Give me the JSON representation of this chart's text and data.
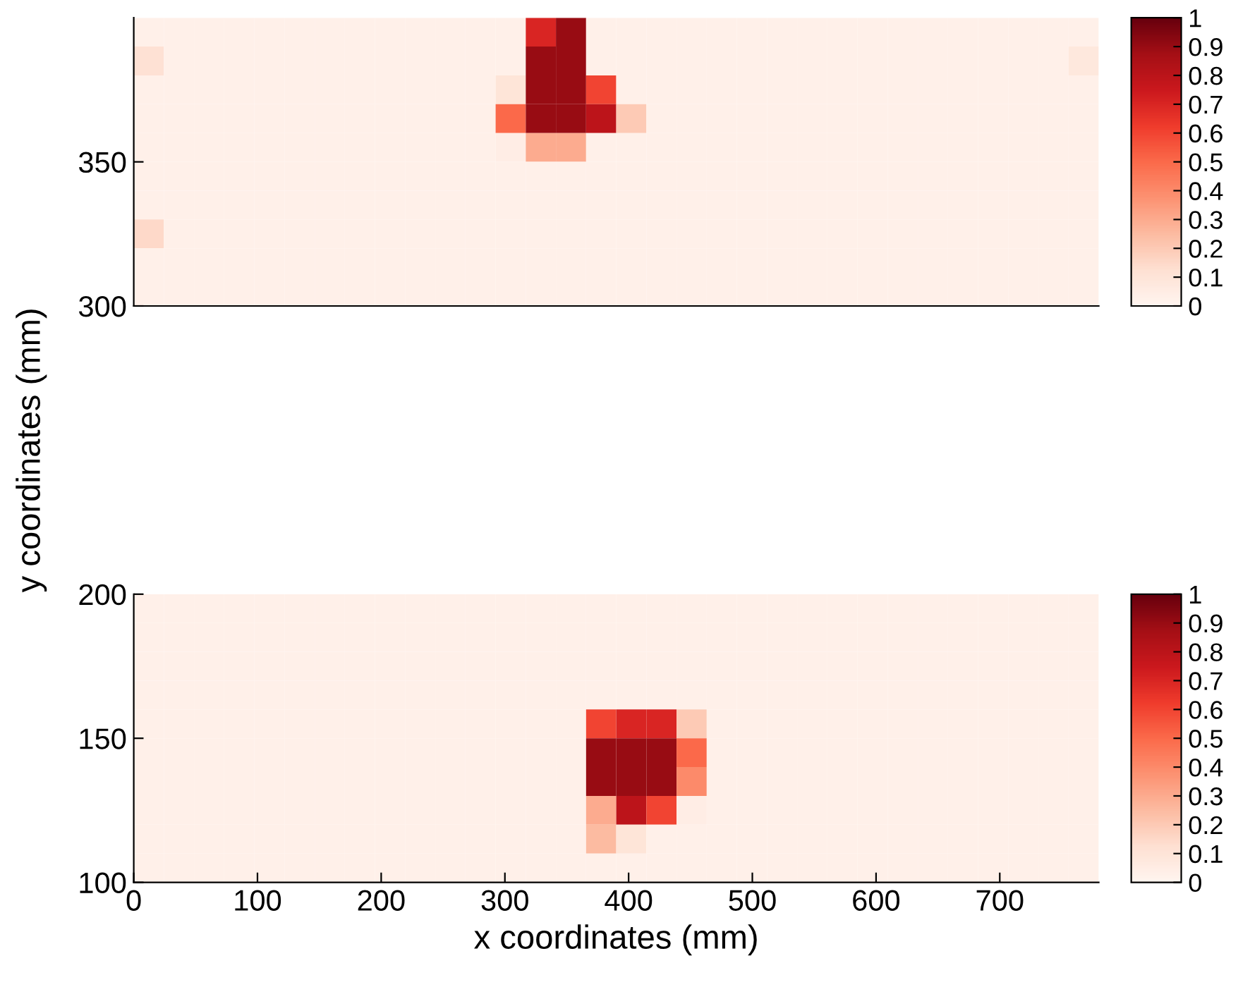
{
  "chart_data": [
    {
      "type": "heatmap",
      "ylabel": "y coordinates (mm)",
      "xlim": [
        0,
        780
      ],
      "ylim": [
        300,
        400
      ],
      "tick_labels": "y",
      "yticks": [
        300,
        350
      ],
      "clim": [
        0,
        1
      ],
      "cticks": [
        0,
        0.1,
        0.2,
        0.3,
        0.4,
        0.5,
        0.6,
        0.7,
        0.8,
        0.9,
        1
      ],
      "cells": [
        [
          0.03,
          0.03,
          0.03,
          0.03,
          0.03,
          0.03,
          0.03,
          0.03,
          0.03,
          0.03,
          0.03,
          0.03,
          0.03,
          0.7,
          0.9,
          0.03,
          0.03,
          0.03,
          0.03,
          0.03,
          0.03,
          0.03,
          0.03,
          0.03,
          0.03,
          0.03,
          0.03,
          0.03,
          0.03,
          0.03,
          0.03,
          0.03
        ],
        [
          0.12,
          0.03,
          0.03,
          0.03,
          0.03,
          0.03,
          0.03,
          0.03,
          0.03,
          0.03,
          0.03,
          0.03,
          0.03,
          0.9,
          0.9,
          0.03,
          0.03,
          0.03,
          0.03,
          0.03,
          0.03,
          0.03,
          0.03,
          0.03,
          0.03,
          0.03,
          0.03,
          0.03,
          0.03,
          0.03,
          0.03,
          0.08
        ],
        [
          0.03,
          0.03,
          0.03,
          0.03,
          0.03,
          0.03,
          0.03,
          0.03,
          0.03,
          0.03,
          0.03,
          0.03,
          0.1,
          0.9,
          0.9,
          0.6,
          0.03,
          0.03,
          0.03,
          0.03,
          0.03,
          0.03,
          0.03,
          0.03,
          0.03,
          0.03,
          0.03,
          0.03,
          0.03,
          0.03,
          0.03,
          0.03
        ],
        [
          0.03,
          0.03,
          0.03,
          0.03,
          0.03,
          0.03,
          0.03,
          0.03,
          0.03,
          0.03,
          0.03,
          0.03,
          0.5,
          0.9,
          0.9,
          0.8,
          0.2,
          0.03,
          0.03,
          0.03,
          0.03,
          0.03,
          0.03,
          0.03,
          0.03,
          0.03,
          0.03,
          0.03,
          0.03,
          0.03,
          0.03,
          0.03
        ],
        [
          0.03,
          0.03,
          0.03,
          0.03,
          0.03,
          0.03,
          0.03,
          0.03,
          0.03,
          0.03,
          0.03,
          0.03,
          0.05,
          0.3,
          0.3,
          0.03,
          0.03,
          0.03,
          0.03,
          0.03,
          0.03,
          0.03,
          0.03,
          0.03,
          0.03,
          0.03,
          0.03,
          0.03,
          0.03,
          0.03,
          0.03,
          0.03
        ],
        [
          0.03,
          0.03,
          0.03,
          0.03,
          0.03,
          0.03,
          0.03,
          0.03,
          0.03,
          0.03,
          0.03,
          0.03,
          0.03,
          0.03,
          0.03,
          0.03,
          0.03,
          0.03,
          0.03,
          0.03,
          0.03,
          0.03,
          0.03,
          0.03,
          0.03,
          0.03,
          0.03,
          0.03,
          0.03,
          0.03,
          0.03,
          0.03
        ],
        [
          0.03,
          0.03,
          0.03,
          0.03,
          0.03,
          0.03,
          0.03,
          0.03,
          0.03,
          0.03,
          0.03,
          0.03,
          0.03,
          0.03,
          0.03,
          0.03,
          0.03,
          0.03,
          0.03,
          0.03,
          0.03,
          0.03,
          0.03,
          0.03,
          0.03,
          0.03,
          0.03,
          0.03,
          0.03,
          0.03,
          0.03,
          0.03
        ],
        [
          0.15,
          0.03,
          0.03,
          0.03,
          0.03,
          0.03,
          0.03,
          0.03,
          0.03,
          0.03,
          0.03,
          0.03,
          0.03,
          0.03,
          0.03,
          0.03,
          0.03,
          0.03,
          0.03,
          0.03,
          0.03,
          0.03,
          0.03,
          0.03,
          0.03,
          0.03,
          0.03,
          0.03,
          0.03,
          0.03,
          0.03,
          0.03
        ],
        [
          0.03,
          0.03,
          0.03,
          0.03,
          0.03,
          0.03,
          0.03,
          0.03,
          0.03,
          0.03,
          0.03,
          0.03,
          0.03,
          0.03,
          0.03,
          0.03,
          0.03,
          0.03,
          0.03,
          0.03,
          0.03,
          0.03,
          0.03,
          0.03,
          0.03,
          0.03,
          0.03,
          0.03,
          0.03,
          0.03,
          0.03,
          0.03
        ],
        [
          0.03,
          0.03,
          0.03,
          0.03,
          0.03,
          0.03,
          0.03,
          0.03,
          0.03,
          0.03,
          0.03,
          0.03,
          0.03,
          0.03,
          0.03,
          0.03,
          0.03,
          0.03,
          0.03,
          0.03,
          0.03,
          0.03,
          0.03,
          0.03,
          0.03,
          0.03,
          0.03,
          0.03,
          0.03,
          0.03,
          0.03,
          0.03
        ]
      ]
    },
    {
      "type": "heatmap",
      "xlabel": "x coordinates (mm)",
      "xlim": [
        0,
        780
      ],
      "ylim": [
        100,
        200
      ],
      "xticks": [
        0,
        100,
        200,
        300,
        400,
        500,
        600,
        700
      ],
      "yticks": [
        100,
        150,
        200
      ],
      "clim": [
        0,
        1
      ],
      "cticks": [
        0,
        0.1,
        0.2,
        0.3,
        0.4,
        0.5,
        0.6,
        0.7,
        0.8,
        0.9,
        1
      ],
      "cells": [
        [
          0.03,
          0.03,
          0.03,
          0.03,
          0.03,
          0.03,
          0.03,
          0.03,
          0.03,
          0.03,
          0.03,
          0.03,
          0.03,
          0.03,
          0.03,
          0.03,
          0.03,
          0.03,
          0.03,
          0.03,
          0.03,
          0.03,
          0.03,
          0.03,
          0.03,
          0.03,
          0.03,
          0.03,
          0.03,
          0.03,
          0.03,
          0.03
        ],
        [
          0.03,
          0.03,
          0.03,
          0.03,
          0.03,
          0.03,
          0.03,
          0.03,
          0.03,
          0.03,
          0.03,
          0.03,
          0.03,
          0.03,
          0.03,
          0.03,
          0.03,
          0.03,
          0.03,
          0.03,
          0.03,
          0.03,
          0.03,
          0.03,
          0.03,
          0.03,
          0.03,
          0.03,
          0.03,
          0.03,
          0.03,
          0.03
        ],
        [
          0.03,
          0.03,
          0.03,
          0.03,
          0.03,
          0.03,
          0.03,
          0.03,
          0.03,
          0.03,
          0.03,
          0.03,
          0.03,
          0.03,
          0.03,
          0.03,
          0.03,
          0.03,
          0.03,
          0.03,
          0.03,
          0.03,
          0.03,
          0.03,
          0.03,
          0.03,
          0.03,
          0.03,
          0.03,
          0.03,
          0.03,
          0.03
        ],
        [
          0.03,
          0.03,
          0.03,
          0.03,
          0.03,
          0.03,
          0.03,
          0.03,
          0.03,
          0.03,
          0.03,
          0.03,
          0.03,
          0.03,
          0.03,
          0.03,
          0.03,
          0.03,
          0.03,
          0.03,
          0.03,
          0.03,
          0.03,
          0.03,
          0.03,
          0.03,
          0.03,
          0.03,
          0.03,
          0.03,
          0.03,
          0.03
        ],
        [
          0.03,
          0.03,
          0.03,
          0.03,
          0.03,
          0.03,
          0.03,
          0.03,
          0.03,
          0.03,
          0.03,
          0.03,
          0.03,
          0.03,
          0.03,
          0.6,
          0.7,
          0.7,
          0.2,
          0.03,
          0.03,
          0.03,
          0.03,
          0.03,
          0.03,
          0.03,
          0.03,
          0.03,
          0.03,
          0.03,
          0.03,
          0.03
        ],
        [
          0.03,
          0.03,
          0.03,
          0.03,
          0.03,
          0.03,
          0.03,
          0.03,
          0.03,
          0.03,
          0.03,
          0.03,
          0.03,
          0.03,
          0.03,
          0.9,
          0.9,
          0.9,
          0.5,
          0.03,
          0.03,
          0.03,
          0.03,
          0.03,
          0.03,
          0.03,
          0.03,
          0.03,
          0.03,
          0.03,
          0.03,
          0.03
        ],
        [
          0.03,
          0.03,
          0.03,
          0.03,
          0.03,
          0.03,
          0.03,
          0.03,
          0.03,
          0.03,
          0.03,
          0.03,
          0.03,
          0.03,
          0.03,
          0.9,
          0.9,
          0.9,
          0.4,
          0.03,
          0.03,
          0.03,
          0.03,
          0.03,
          0.03,
          0.03,
          0.03,
          0.03,
          0.03,
          0.03,
          0.03,
          0.03
        ],
        [
          0.03,
          0.03,
          0.03,
          0.03,
          0.03,
          0.03,
          0.03,
          0.03,
          0.03,
          0.03,
          0.03,
          0.03,
          0.03,
          0.03,
          0.03,
          0.3,
          0.8,
          0.6,
          0.05,
          0.03,
          0.03,
          0.03,
          0.03,
          0.03,
          0.03,
          0.03,
          0.03,
          0.03,
          0.03,
          0.03,
          0.03,
          0.03
        ],
        [
          0.03,
          0.03,
          0.03,
          0.03,
          0.03,
          0.03,
          0.03,
          0.03,
          0.03,
          0.03,
          0.03,
          0.03,
          0.03,
          0.03,
          0.03,
          0.25,
          0.1,
          0.03,
          0.03,
          0.03,
          0.03,
          0.03,
          0.03,
          0.03,
          0.03,
          0.03,
          0.03,
          0.03,
          0.03,
          0.03,
          0.03,
          0.03
        ],
        [
          0.03,
          0.03,
          0.03,
          0.03,
          0.03,
          0.03,
          0.03,
          0.03,
          0.03,
          0.03,
          0.03,
          0.03,
          0.03,
          0.03,
          0.03,
          0.03,
          0.03,
          0.03,
          0.03,
          0.03,
          0.03,
          0.03,
          0.03,
          0.03,
          0.03,
          0.03,
          0.03,
          0.03,
          0.03,
          0.03,
          0.03,
          0.03
        ]
      ]
    }
  ]
}
